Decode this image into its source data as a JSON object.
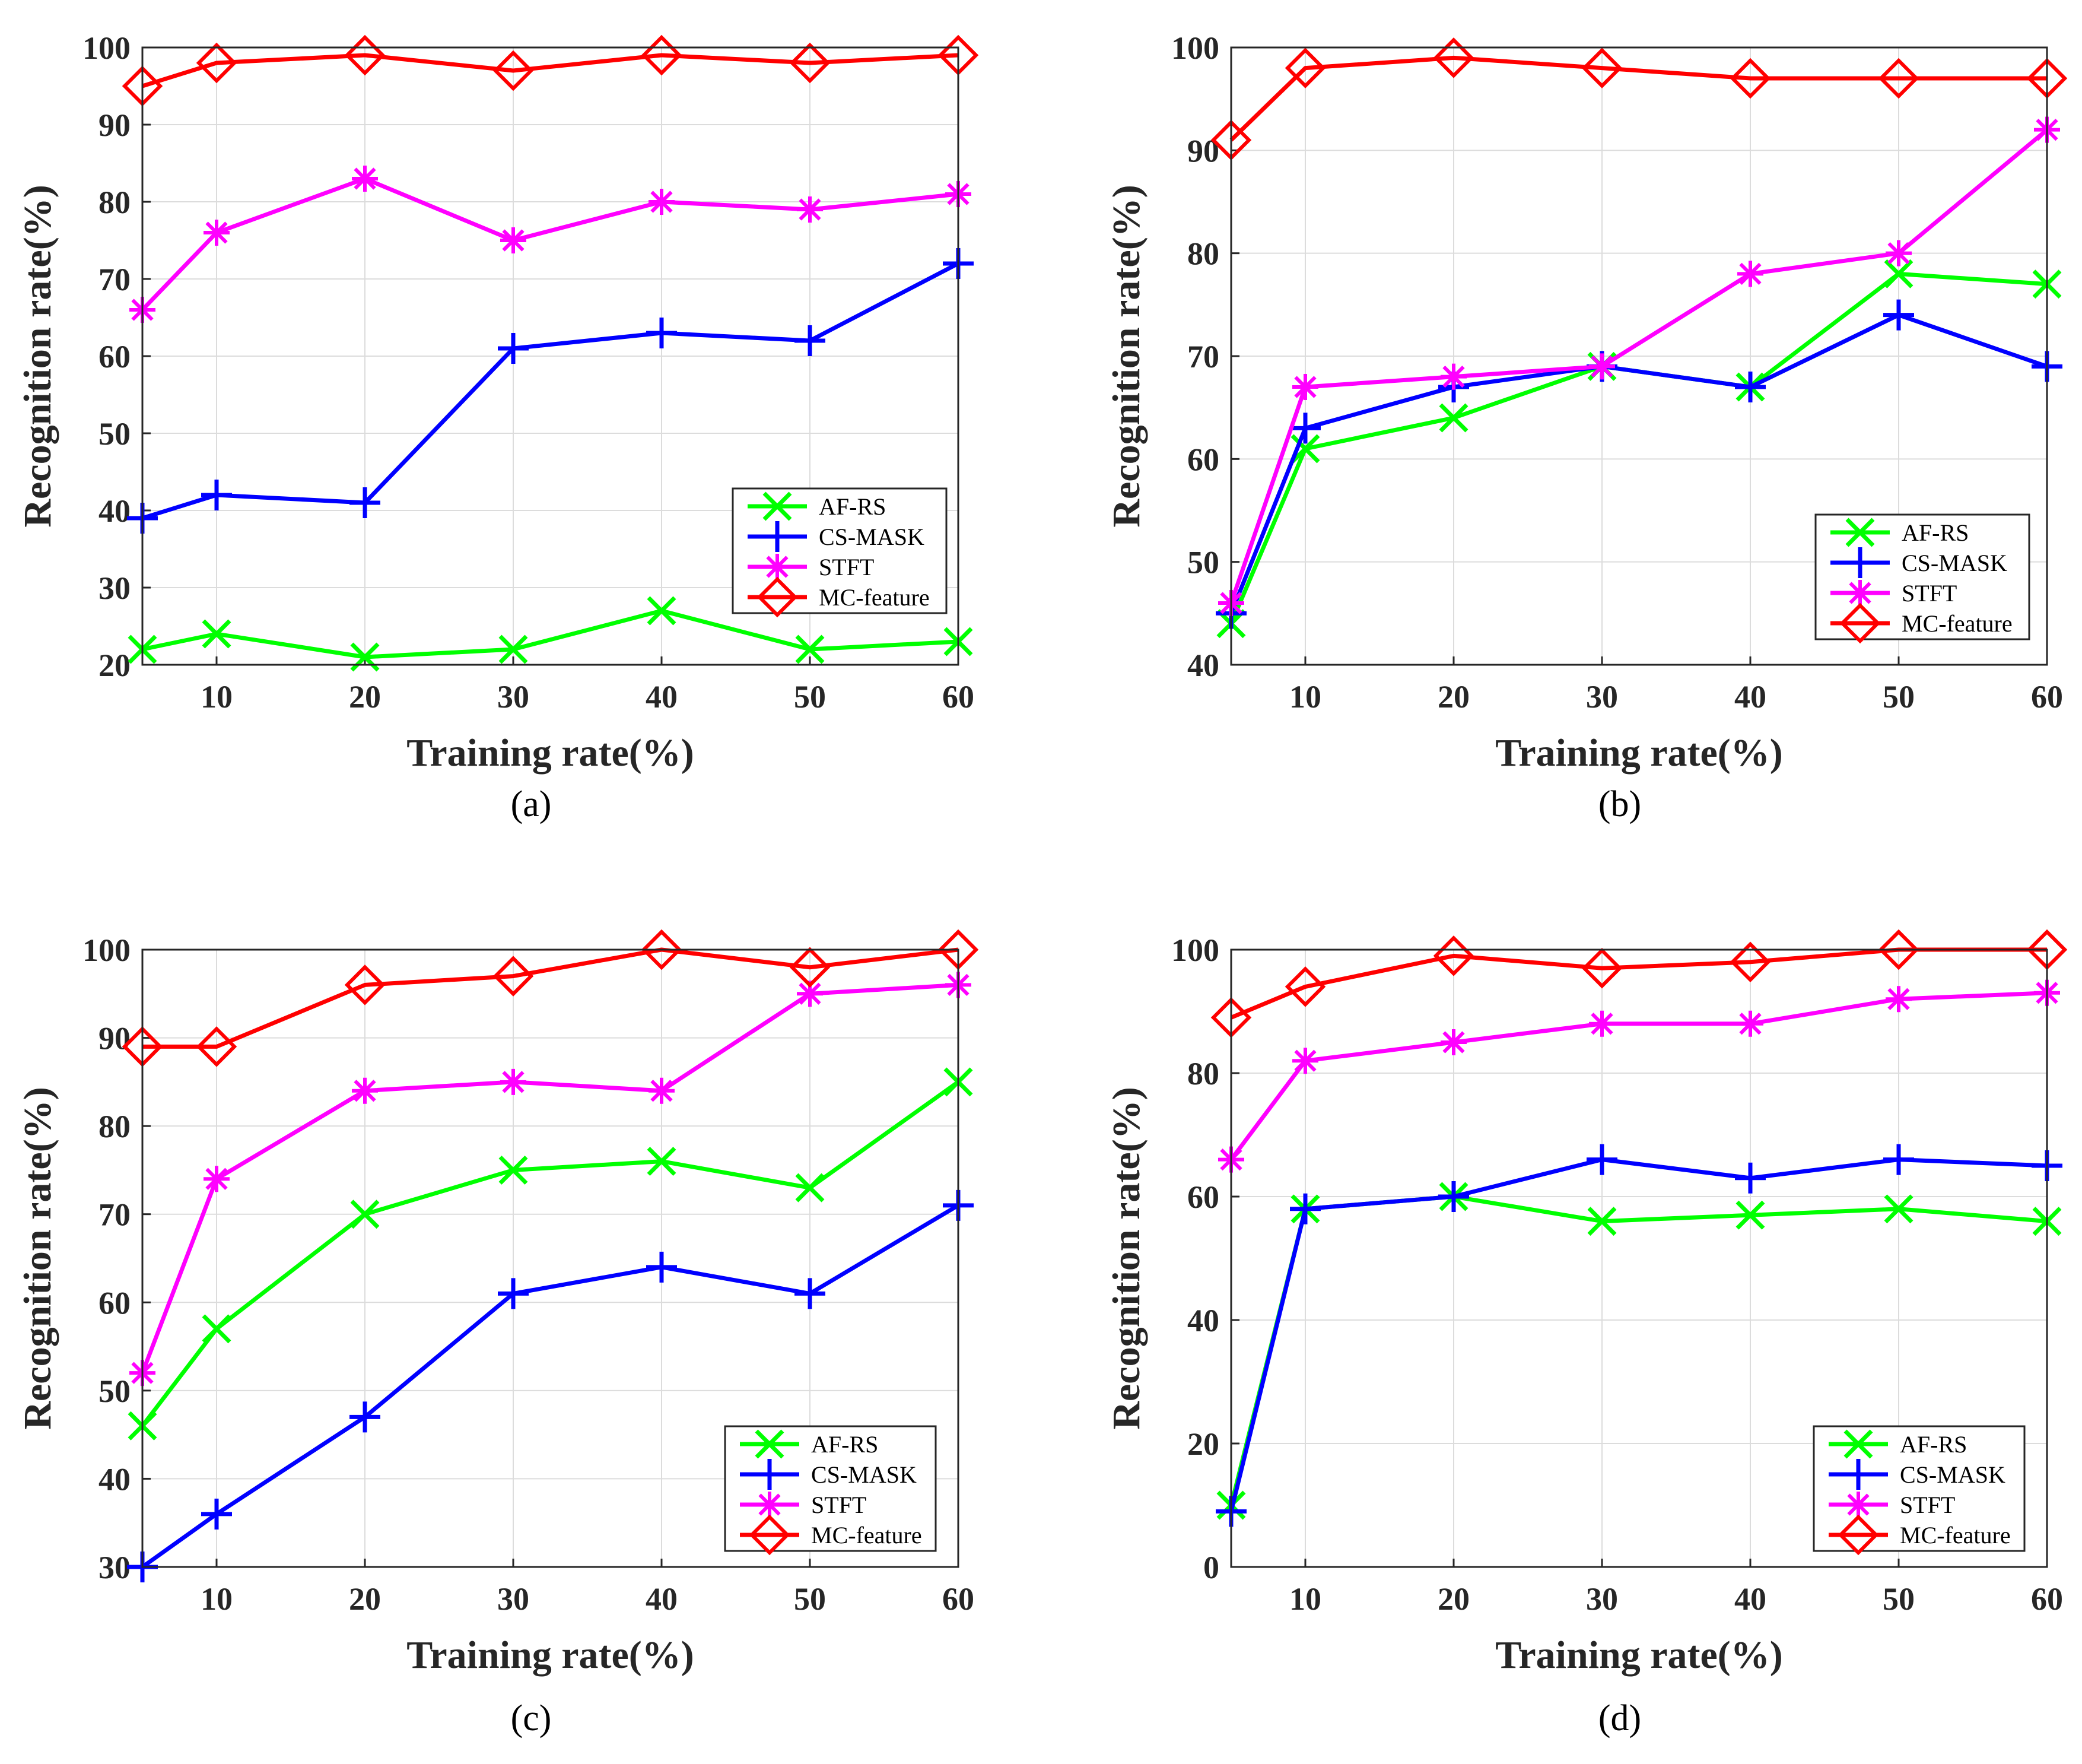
{
  "figure": {
    "series_colors": {
      "AF-RS": "#00ff00",
      "CS-MASK": "#0000ff",
      "STFT": "#ff00ff",
      "MC-feature": "#ff0000"
    },
    "marker_icons": {
      "AF-RS": "x-marker-icon",
      "CS-MASK": "plus-marker-icon",
      "STFT": "asterisk-marker-icon",
      "MC-feature": "diamond-marker-icon"
    }
  },
  "chart_data": [
    {
      "id": "a",
      "type": "line",
      "caption": "(a)",
      "title": "",
      "xlabel": "Training rate(%)",
      "ylabel": "Recognition rate(%)",
      "x": [
        5,
        10,
        20,
        30,
        40,
        50,
        60
      ],
      "xlim": [
        5,
        60
      ],
      "xticks": [
        10,
        20,
        30,
        40,
        50,
        60
      ],
      "ylim": [
        20,
        100
      ],
      "yticks": [
        20,
        30,
        40,
        50,
        60,
        70,
        80,
        90,
        100
      ],
      "grid": true,
      "legend_position": "bottom-right",
      "series": [
        {
          "name": "AF-RS",
          "values": [
            22,
            24,
            21,
            22,
            27,
            22,
            23
          ]
        },
        {
          "name": "CS-MASK",
          "values": [
            39,
            42,
            41,
            61,
            63,
            62,
            72
          ]
        },
        {
          "name": "STFT",
          "values": [
            66,
            76,
            83,
            75,
            80,
            79,
            81
          ]
        },
        {
          "name": "MC-feature",
          "values": [
            95,
            98,
            99,
            97,
            99,
            98,
            99
          ]
        }
      ]
    },
    {
      "id": "b",
      "type": "line",
      "caption": "(b)",
      "title": "",
      "xlabel": "Training rate(%)",
      "ylabel": "Recognition rate(%)",
      "x": [
        5,
        10,
        20,
        30,
        40,
        50,
        60
      ],
      "xlim": [
        5,
        60
      ],
      "xticks": [
        10,
        20,
        30,
        40,
        50,
        60
      ],
      "ylim": [
        40,
        100
      ],
      "yticks": [
        40,
        50,
        60,
        70,
        80,
        90,
        100
      ],
      "grid": true,
      "legend_position": "bottom-right",
      "series": [
        {
          "name": "AF-RS",
          "values": [
            44,
            61,
            64,
            69,
            67,
            78,
            77
          ]
        },
        {
          "name": "CS-MASK",
          "values": [
            45,
            63,
            67,
            69,
            67,
            74,
            69
          ]
        },
        {
          "name": "STFT",
          "values": [
            46,
            67,
            68,
            69,
            78,
            80,
            92
          ]
        },
        {
          "name": "MC-feature",
          "values": [
            91,
            98,
            99,
            98,
            97,
            97,
            97
          ]
        }
      ]
    },
    {
      "id": "c",
      "type": "line",
      "caption": "(c)",
      "title": "",
      "xlabel": "Training rate(%)",
      "ylabel": "Recognition rate(%)",
      "x": [
        5,
        10,
        20,
        30,
        40,
        50,
        60
      ],
      "xlim": [
        5,
        60
      ],
      "xticks": [
        10,
        20,
        30,
        40,
        50,
        60
      ],
      "ylim": [
        30,
        100
      ],
      "yticks": [
        30,
        40,
        50,
        60,
        70,
        80,
        90,
        100
      ],
      "grid": true,
      "legend_position": "bottom-right",
      "series": [
        {
          "name": "AF-RS",
          "values": [
            46,
            57,
            70,
            75,
            76,
            73,
            85
          ]
        },
        {
          "name": "CS-MASK",
          "values": [
            30,
            36,
            47,
            61,
            64,
            61,
            71
          ]
        },
        {
          "name": "STFT",
          "values": [
            52,
            74,
            84,
            85,
            84,
            95,
            96
          ]
        },
        {
          "name": "MC-feature",
          "values": [
            89,
            89,
            96,
            97,
            100,
            98,
            100
          ]
        }
      ]
    },
    {
      "id": "d",
      "type": "line",
      "caption": "(d)",
      "title": "",
      "xlabel": "Training rate(%)",
      "ylabel": "Recognition rate(%)",
      "x": [
        5,
        10,
        20,
        30,
        40,
        50,
        60
      ],
      "xlim": [
        5,
        60
      ],
      "xticks": [
        10,
        20,
        30,
        40,
        50,
        60
      ],
      "ylim": [
        0,
        100
      ],
      "yticks": [
        0,
        20,
        40,
        60,
        80,
        100
      ],
      "grid": true,
      "legend_position": "bottom-right",
      "series": [
        {
          "name": "AF-RS",
          "values": [
            10,
            58,
            60,
            56,
            57,
            58,
            56
          ]
        },
        {
          "name": "CS-MASK",
          "values": [
            9,
            58,
            60,
            66,
            63,
            66,
            65
          ]
        },
        {
          "name": "STFT",
          "values": [
            66,
            82,
            85,
            88,
            88,
            92,
            93
          ]
        },
        {
          "name": "MC-feature",
          "values": [
            89,
            94,
            99,
            97,
            98,
            100,
            100
          ]
        }
      ]
    }
  ]
}
